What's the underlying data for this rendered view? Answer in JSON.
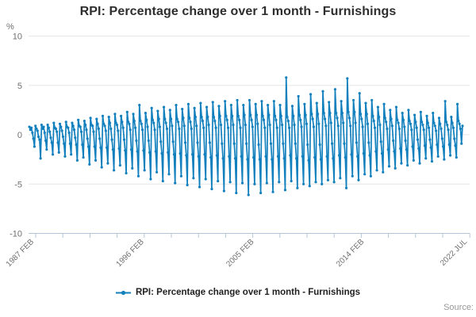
{
  "title": "RPI: Percentage change over 1 month - Furnishings",
  "unit_label": "%",
  "legend": {
    "label": "RPI: Percentage change over 1 month - Furnishings"
  },
  "source_label": "Source:",
  "style": {
    "series_color": "#1380be",
    "grid_color": "#e6e6e6",
    "axis_color": "#b6c4da",
    "tick_text_color": "#707070"
  },
  "y_axis": {
    "ticks": [
      10,
      5,
      0,
      -5,
      -10
    ],
    "min": -10,
    "max": 10
  },
  "x_axis": {
    "labels": [
      {
        "label": "1987 FEB",
        "index": 0
      },
      {
        "label": "1996 FEB",
        "index": 108
      },
      {
        "label": "2005 FEB",
        "index": 216
      },
      {
        "label": "2014 FEB",
        "index": 324
      },
      {
        "label": "2022 JUL",
        "index": 425
      }
    ]
  },
  "chart_data": {
    "type": "line",
    "title": "RPI: Percentage change over 1 month - Furnishings",
    "ylabel": "%",
    "ylim": [
      -10,
      10
    ],
    "grid": true,
    "legend_position": "bottom",
    "frequency": "monthly",
    "start": "1987 FEB",
    "end": "2022 JUL",
    "series_name": "RPI: Percentage change over 1 month - Furnishings",
    "values": [
      0.8,
      0.5,
      0.7,
      0.2,
      -0.4,
      -1.2,
      0.9,
      0.6,
      0.4,
      -0.2,
      -0.5,
      -2.4,
      1.0,
      0.6,
      0.8,
      0.2,
      -0.6,
      -1.5,
      1.0,
      0.7,
      0.3,
      -0.3,
      -0.8,
      -2.0,
      1.2,
      0.7,
      0.6,
      0.3,
      -0.8,
      -1.8,
      1.1,
      0.8,
      0.4,
      -0.2,
      -0.9,
      -2.2,
      1.3,
      0.8,
      0.7,
      0.2,
      -0.9,
      -2.0,
      1.2,
      0.9,
      0.5,
      -0.3,
      -1.0,
      -2.6,
      1.5,
      0.9,
      0.8,
      0.3,
      -1.0,
      -2.3,
      1.4,
      1.0,
      0.5,
      -0.4,
      -1.2,
      -3.0,
      1.7,
      1.0,
      0.9,
      0.3,
      -1.2,
      -2.6,
      1.6,
      1.1,
      0.6,
      -0.4,
      -1.3,
      -3.3,
      1.9,
      1.1,
      0.9,
      0.4,
      -1.3,
      -2.9,
      1.8,
      1.2,
      0.6,
      -0.5,
      -1.5,
      -3.6,
      2.1,
      1.2,
      1.0,
      0.4,
      -1.4,
      -3.1,
      1.9,
      1.3,
      0.7,
      -0.5,
      -1.6,
      -3.9,
      2.3,
      1.3,
      1.1,
      0.5,
      -1.5,
      -3.4,
      2.1,
      1.4,
      0.7,
      -0.6,
      -1.7,
      -4.2,
      3.0,
      1.4,
      1.1,
      0.5,
      -1.6,
      -3.6,
      2.2,
      1.5,
      0.8,
      -0.6,
      -1.8,
      -4.5,
      2.7,
      1.5,
      1.2,
      0.5,
      -1.7,
      -3.8,
      2.4,
      1.6,
      0.8,
      -0.7,
      -1.9,
      -4.7,
      2.8,
      1.6,
      1.2,
      0.6,
      -1.8,
      -4.0,
      2.5,
      1.6,
      0.9,
      -0.7,
      -2.0,
      -4.9,
      3.0,
      1.6,
      1.3,
      0.6,
      -1.9,
      -4.2,
      2.6,
      1.7,
      0.9,
      -0.8,
      -2.1,
      -5.1,
      3.1,
      1.7,
      1.3,
      0.6,
      -2.0,
      -4.4,
      2.7,
      1.8,
      0.9,
      -0.8,
      -2.2,
      -5.3,
      3.2,
      1.8,
      1.4,
      0.7,
      -2.0,
      -4.5,
      2.8,
      1.8,
      1.0,
      -0.8,
      -2.3,
      -5.5,
      3.3,
      1.8,
      1.4,
      0.7,
      -2.1,
      -4.7,
      2.9,
      1.9,
      1.0,
      -0.9,
      -2.4,
      -5.7,
      3.4,
      1.9,
      1.5,
      0.7,
      -2.2,
      -4.8,
      3.0,
      1.9,
      1.0,
      -0.9,
      -2.4,
      -5.9,
      3.5,
      1.9,
      1.5,
      0.7,
      -2.2,
      -4.9,
      3.0,
      2.0,
      1.0,
      -0.9,
      -2.5,
      -6.1,
      3.5,
      2.0,
      1.5,
      0.8,
      -2.3,
      -5.0,
      3.1,
      2.0,
      1.1,
      -1.0,
      -2.5,
      -5.9,
      3.4,
      1.9,
      1.5,
      0.7,
      -2.2,
      -4.9,
      3.0,
      2.0,
      1.0,
      -0.9,
      -2.5,
      -5.8,
      3.4,
      1.9,
      1.5,
      0.7,
      -2.2,
      -4.8,
      3.0,
      1.9,
      1.0,
      -0.9,
      -2.4,
      -5.6,
      5.8,
      1.8,
      1.4,
      0.7,
      -2.1,
      -4.7,
      2.9,
      1.9,
      1.0,
      -0.9,
      -2.4,
      -5.4,
      3.9,
      2.0,
      1.5,
      0.8,
      -2.2,
      -5.0,
      3.1,
      2.0,
      1.1,
      -1.0,
      -2.6,
      -5.2,
      4.1,
      2.1,
      1.6,
      0.8,
      -2.3,
      -4.8,
      3.2,
      2.1,
      1.1,
      -1.0,
      -2.5,
      -5.0,
      4.4,
      2.2,
      1.6,
      0.9,
      -2.2,
      -4.6,
      3.3,
      2.2,
      1.2,
      -0.9,
      -2.4,
      -4.8,
      4.6,
      2.2,
      1.7,
      0.9,
      -2.1,
      -4.4,
      3.4,
      2.2,
      1.2,
      -0.9,
      -2.3,
      -5.4,
      5.7,
      2.3,
      1.7,
      0.9,
      -2.0,
      -4.2,
      3.5,
      2.3,
      1.2,
      -0.8,
      -2.2,
      -4.6,
      4.2,
      2.1,
      1.6,
      0.8,
      -1.9,
      -4.0,
      3.2,
      2.1,
      1.1,
      -0.8,
      -2.1,
      -4.2,
      3.5,
      1.9,
      1.4,
      0.7,
      -1.7,
      -3.6,
      2.8,
      1.8,
      1.0,
      -0.7,
      -1.9,
      -3.8,
      3.1,
      1.7,
      1.3,
      0.6,
      -1.5,
      -3.2,
      2.5,
      1.6,
      0.9,
      -0.6,
      -1.7,
      -3.4,
      2.8,
      1.5,
      1.2,
      0.6,
      -1.4,
      -2.9,
      2.2,
      1.5,
      0.8,
      -0.6,
      -1.5,
      -3.1,
      2.5,
      1.4,
      1.1,
      0.5,
      -1.2,
      -2.6,
      2.0,
      1.3,
      0.7,
      -0.5,
      -1.4,
      -2.9,
      2.3,
      1.3,
      1.0,
      0.5,
      -1.1,
      -2.4,
      1.9,
      1.2,
      0.7,
      -0.5,
      -1.3,
      -2.7,
      2.2,
      1.2,
      0.9,
      0.4,
      -1.0,
      -2.2,
      1.7,
      1.1,
      0.6,
      -0.4,
      -1.2,
      -2.5,
      3.4,
      1.3,
      1.0,
      0.5,
      -1.0,
      -2.1,
      1.8,
      1.2,
      0.7,
      -0.4,
      -1.1,
      -2.3,
      3.1,
      1.4,
      1.1,
      0.6,
      -0.9,
      0.9
    ]
  }
}
